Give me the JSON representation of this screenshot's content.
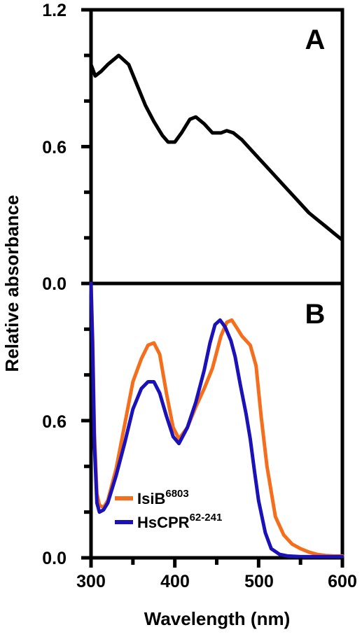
{
  "y_axis_label": "Relative absorbance",
  "x_axis_label": "Wavelength (nm)",
  "x_tick_labels": [
    "300",
    "400",
    "500",
    "600"
  ],
  "panel_a": {
    "label": "A",
    "y_tick_labels": [
      "0.0",
      "0.6",
      "1.2"
    ]
  },
  "panel_b": {
    "label": "B",
    "y_tick_labels": [
      "0.0",
      "0.6"
    ]
  },
  "legend": {
    "isib": {
      "name": "IsiB",
      "sup": "6803"
    },
    "hscpr": {
      "name": "HsCPR",
      "sup": "62-241"
    }
  },
  "chart_data": [
    {
      "panel": "A",
      "type": "line",
      "xlim": [
        300,
        600
      ],
      "ylim": [
        0,
        1.2
      ],
      "y_minor_step": 0.2,
      "grid": false,
      "series": [
        {
          "color": "#000000",
          "x": [
            300,
            305,
            312,
            320,
            333,
            345,
            355,
            365,
            375,
            385,
            392,
            400,
            408,
            418,
            425,
            435,
            445,
            455,
            462,
            470,
            480,
            490,
            500,
            510,
            520,
            530,
            540,
            550,
            560,
            570,
            580,
            590,
            600
          ],
          "y": [
            0.96,
            0.91,
            0.93,
            0.96,
            1.0,
            0.96,
            0.87,
            0.78,
            0.71,
            0.65,
            0.62,
            0.62,
            0.66,
            0.72,
            0.73,
            0.7,
            0.66,
            0.66,
            0.67,
            0.66,
            0.63,
            0.59,
            0.55,
            0.51,
            0.47,
            0.43,
            0.39,
            0.35,
            0.31,
            0.28,
            0.25,
            0.22,
            0.19
          ]
        }
      ]
    },
    {
      "panel": "B",
      "type": "line",
      "xlim": [
        300,
        600
      ],
      "ylim": [
        0,
        1.2
      ],
      "y_minor_step": 0.2,
      "grid": false,
      "legend_position": "bottom-left",
      "series": [
        {
          "legend_key": "isib",
          "color": "#f56e1c",
          "x": [
            300,
            302,
            304,
            307,
            310,
            315,
            320,
            330,
            340,
            350,
            360,
            368,
            375,
            382,
            390,
            398,
            405,
            415,
            425,
            435,
            445,
            455,
            462,
            468,
            475,
            480,
            490,
            497,
            503,
            510,
            520,
            530,
            540,
            550,
            560,
            570,
            580,
            590,
            600
          ],
          "y": [
            1.2,
            0.95,
            0.55,
            0.28,
            0.23,
            0.22,
            0.25,
            0.39,
            0.58,
            0.77,
            0.87,
            0.93,
            0.94,
            0.89,
            0.72,
            0.57,
            0.52,
            0.57,
            0.66,
            0.74,
            0.83,
            0.97,
            1.03,
            1.04,
            1.0,
            0.97,
            0.93,
            0.84,
            0.62,
            0.4,
            0.18,
            0.1,
            0.06,
            0.04,
            0.025,
            0.015,
            0.01,
            0.008,
            0.008
          ]
        },
        {
          "legend_key": "hscpr",
          "color": "#1a12b8",
          "x": [
            300,
            302,
            304,
            307,
            310,
            315,
            320,
            330,
            340,
            350,
            360,
            368,
            375,
            382,
            390,
            398,
            405,
            415,
            425,
            435,
            442,
            448,
            454,
            460,
            467,
            472,
            478,
            485,
            490,
            495,
            500,
            508,
            515,
            525,
            535,
            550,
            600
          ],
          "y": [
            1.2,
            0.9,
            0.5,
            0.24,
            0.2,
            0.21,
            0.24,
            0.36,
            0.5,
            0.65,
            0.74,
            0.77,
            0.77,
            0.72,
            0.62,
            0.53,
            0.5,
            0.57,
            0.68,
            0.82,
            0.94,
            1.02,
            1.04,
            1.01,
            0.95,
            0.88,
            0.76,
            0.63,
            0.52,
            0.38,
            0.25,
            0.11,
            0.04,
            0.015,
            0.008,
            0.005,
            0.005
          ]
        }
      ]
    }
  ]
}
